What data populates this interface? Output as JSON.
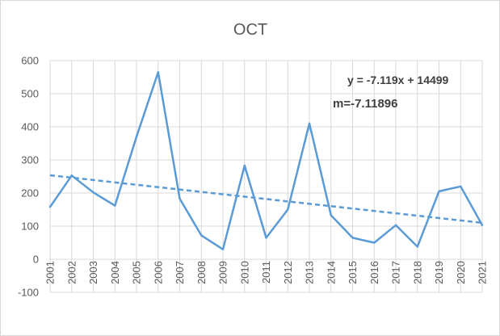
{
  "chart_data": {
    "type": "line",
    "title": "OCT",
    "x": [
      "2001",
      "2002",
      "2003",
      "2004",
      "2005",
      "2006",
      "2007",
      "2008",
      "2009",
      "2010",
      "2011",
      "2012",
      "2013",
      "2014",
      "2015",
      "2016",
      "2017",
      "2018",
      "2019",
      "2020",
      "2021"
    ],
    "series": [
      {
        "values": [
          158,
          253,
          202,
          162,
          370,
          565,
          183,
          72,
          30,
          283,
          65,
          150,
          410,
          133,
          65,
          50,
          103,
          38,
          205,
          220,
          103
        ]
      }
    ],
    "trendline": {
      "equation": "y = -7.119x + 14499",
      "slope_label": "m=-7.11896",
      "slope": -7.119,
      "intercept": 14499
    },
    "ylim": [
      -100,
      600
    ],
    "yticks": [
      "-100",
      "0",
      "100",
      "200",
      "300",
      "400",
      "500",
      "600"
    ],
    "ytick_values": [
      -100,
      0,
      100,
      200,
      300,
      400,
      500,
      600
    ],
    "grid": true,
    "legend": "none",
    "colors": {
      "series": "#5b9bd5",
      "grid": "#d9d9d9",
      "text": "#595959"
    }
  }
}
